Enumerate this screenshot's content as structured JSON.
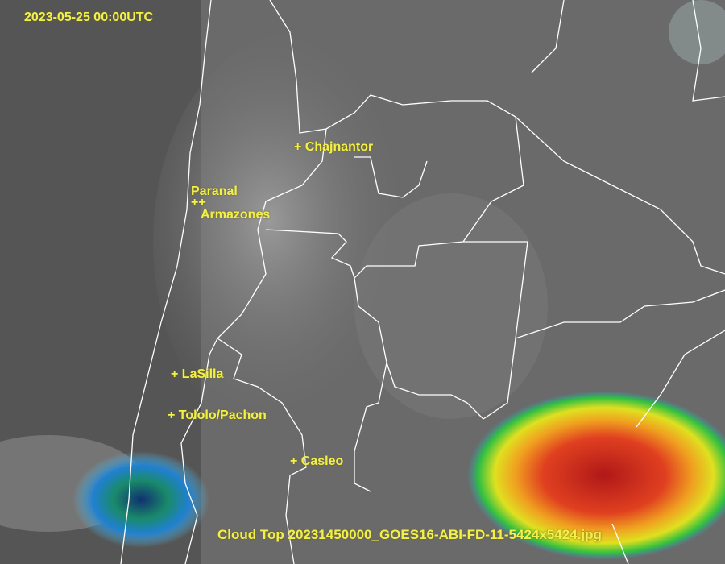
{
  "timestamp": "2023-05-25 00:00UTC",
  "caption": "Cloud Top 20231450000_GOES16-ABI-FD-11-5424x5424.jpg",
  "sites": [
    {
      "label": "+ Chajnantor"
    },
    {
      "label": "Paranal"
    },
    {
      "label": "++"
    },
    {
      "label": "Armazones"
    },
    {
      "label": "+ LaSilla"
    },
    {
      "label": "+ Tololo/Pachon"
    },
    {
      "label": "+ Casleo"
    }
  ],
  "colors": {
    "label": "#f4f04a",
    "borders": "#ffffff",
    "cold_cloud_red": "#c8201a",
    "cold_cloud_yellow": "#e8e020",
    "cold_cloud_green": "#20c040",
    "cold_cloud_blue": "#2060c0"
  }
}
